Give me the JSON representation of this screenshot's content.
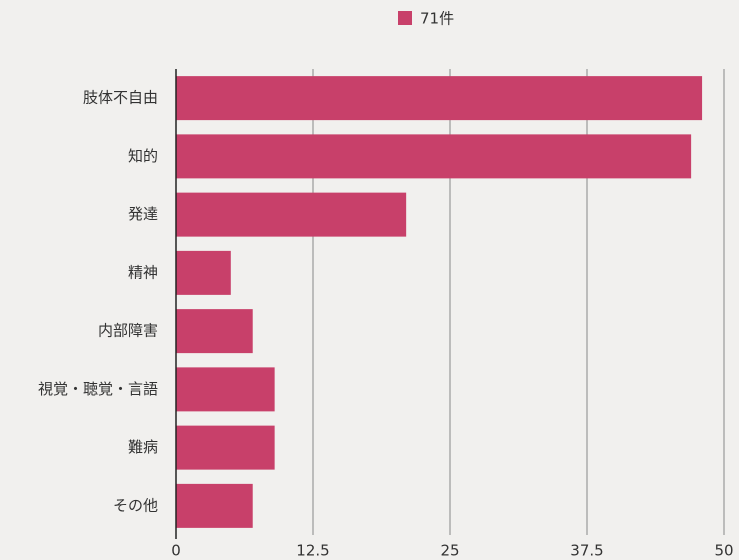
{
  "chart_data": {
    "type": "bar",
    "orientation": "horizontal",
    "categories": [
      "肢体不自由",
      "知的",
      "発達",
      "精神",
      "内部障害",
      "視覚・聴覚・言語",
      "難病",
      "その他"
    ],
    "series": [
      {
        "name": "71件",
        "color": "#c8406a",
        "values": [
          48,
          47,
          21,
          5,
          7,
          9,
          9,
          7
        ]
      }
    ],
    "xlim": [
      0,
      50
    ],
    "xticks": [
      0,
      12.5,
      25,
      37.5,
      50
    ],
    "grid": true,
    "legend": "top"
  }
}
